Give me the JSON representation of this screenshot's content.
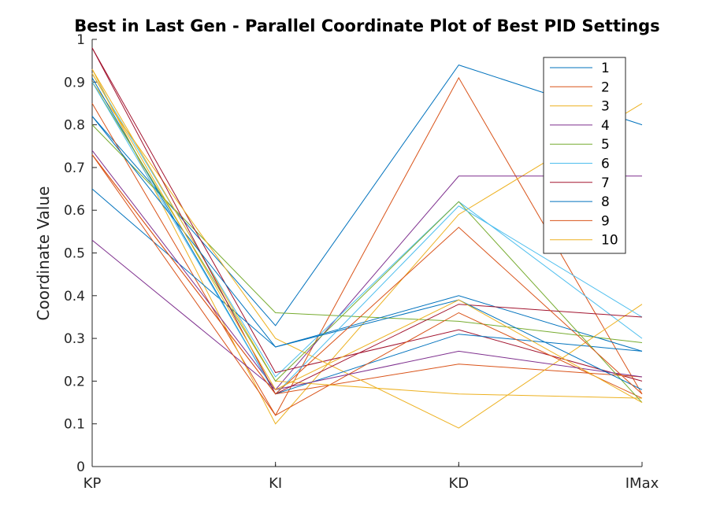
{
  "chart_data": {
    "type": "line",
    "title": "Best in Last Gen - Parallel Coordinate Plot of Best PID Settings",
    "xlabel": "",
    "ylabel": "Coordinate Value",
    "categories": [
      "KP",
      "KI",
      "KD",
      "IMax"
    ],
    "ylim": [
      0,
      1
    ],
    "yticks": [
      "0",
      "0.1",
      "0.2",
      "0.3",
      "0.4",
      "0.5",
      "0.6",
      "0.7",
      "0.8",
      "0.9",
      "1"
    ],
    "grid": false,
    "legend_position": "top-right",
    "series": [
      {
        "name": "1",
        "color": "#0072BD",
        "values": [
          0.82,
          0.33,
          0.94,
          0.8
        ]
      },
      {
        "name": "2",
        "color": "#D95319",
        "values": [
          0.85,
          0.12,
          0.91,
          0.17
        ]
      },
      {
        "name": "3",
        "color": "#EDB120",
        "values": [
          0.93,
          0.1,
          0.59,
          0.85
        ]
      },
      {
        "name": "4",
        "color": "#7E2F8E",
        "values": [
          0.53,
          0.18,
          0.68,
          0.68
        ]
      },
      {
        "name": "5",
        "color": "#77AC30",
        "values": [
          0.8,
          0.36,
          0.34,
          0.29
        ]
      },
      {
        "name": "6",
        "color": "#4DBEEE",
        "values": [
          0.92,
          0.21,
          0.62,
          0.3
        ]
      },
      {
        "name": "7",
        "color": "#A2142F",
        "values": [
          0.98,
          0.22,
          0.32,
          0.2
        ]
      },
      {
        "name": "8",
        "color": "#0072BD",
        "values": [
          0.65,
          0.28,
          0.4,
          0.27
        ]
      },
      {
        "name": "9",
        "color": "#D95319",
        "values": [
          0.73,
          0.17,
          0.24,
          0.21
        ]
      },
      {
        "name": "10",
        "color": "#EDB120",
        "values": [
          0.9,
          0.3,
          0.09,
          0.38
        ]
      },
      {
        "name": "",
        "color": "#0072BD",
        "values": [
          0.91,
          0.17,
          0.31,
          0.27
        ]
      },
      {
        "name": "",
        "color": "#D95319",
        "values": [
          0.73,
          0.12,
          0.36,
          0.16
        ]
      },
      {
        "name": "",
        "color": "#EDB120",
        "values": [
          0.93,
          0.2,
          0.17,
          0.16
        ]
      },
      {
        "name": "",
        "color": "#7E2F8E",
        "values": [
          0.74,
          0.18,
          0.27,
          0.21
        ]
      },
      {
        "name": "",
        "color": "#77AC30",
        "values": [
          0.9,
          0.2,
          0.62,
          0.15
        ]
      },
      {
        "name": "",
        "color": "#4DBEEE",
        "values": [
          0.9,
          0.17,
          0.61,
          0.35
        ]
      },
      {
        "name": "",
        "color": "#A2142F",
        "values": [
          0.98,
          0.17,
          0.38,
          0.35
        ]
      },
      {
        "name": "",
        "color": "#0072BD",
        "values": [
          0.82,
          0.28,
          0.39,
          0.18
        ]
      },
      {
        "name": "",
        "color": "#D95319",
        "values": [
          0.73,
          0.17,
          0.56,
          0.17
        ]
      },
      {
        "name": "",
        "color": "#EDB120",
        "values": [
          0.92,
          0.18,
          0.39,
          0.15
        ]
      }
    ]
  }
}
